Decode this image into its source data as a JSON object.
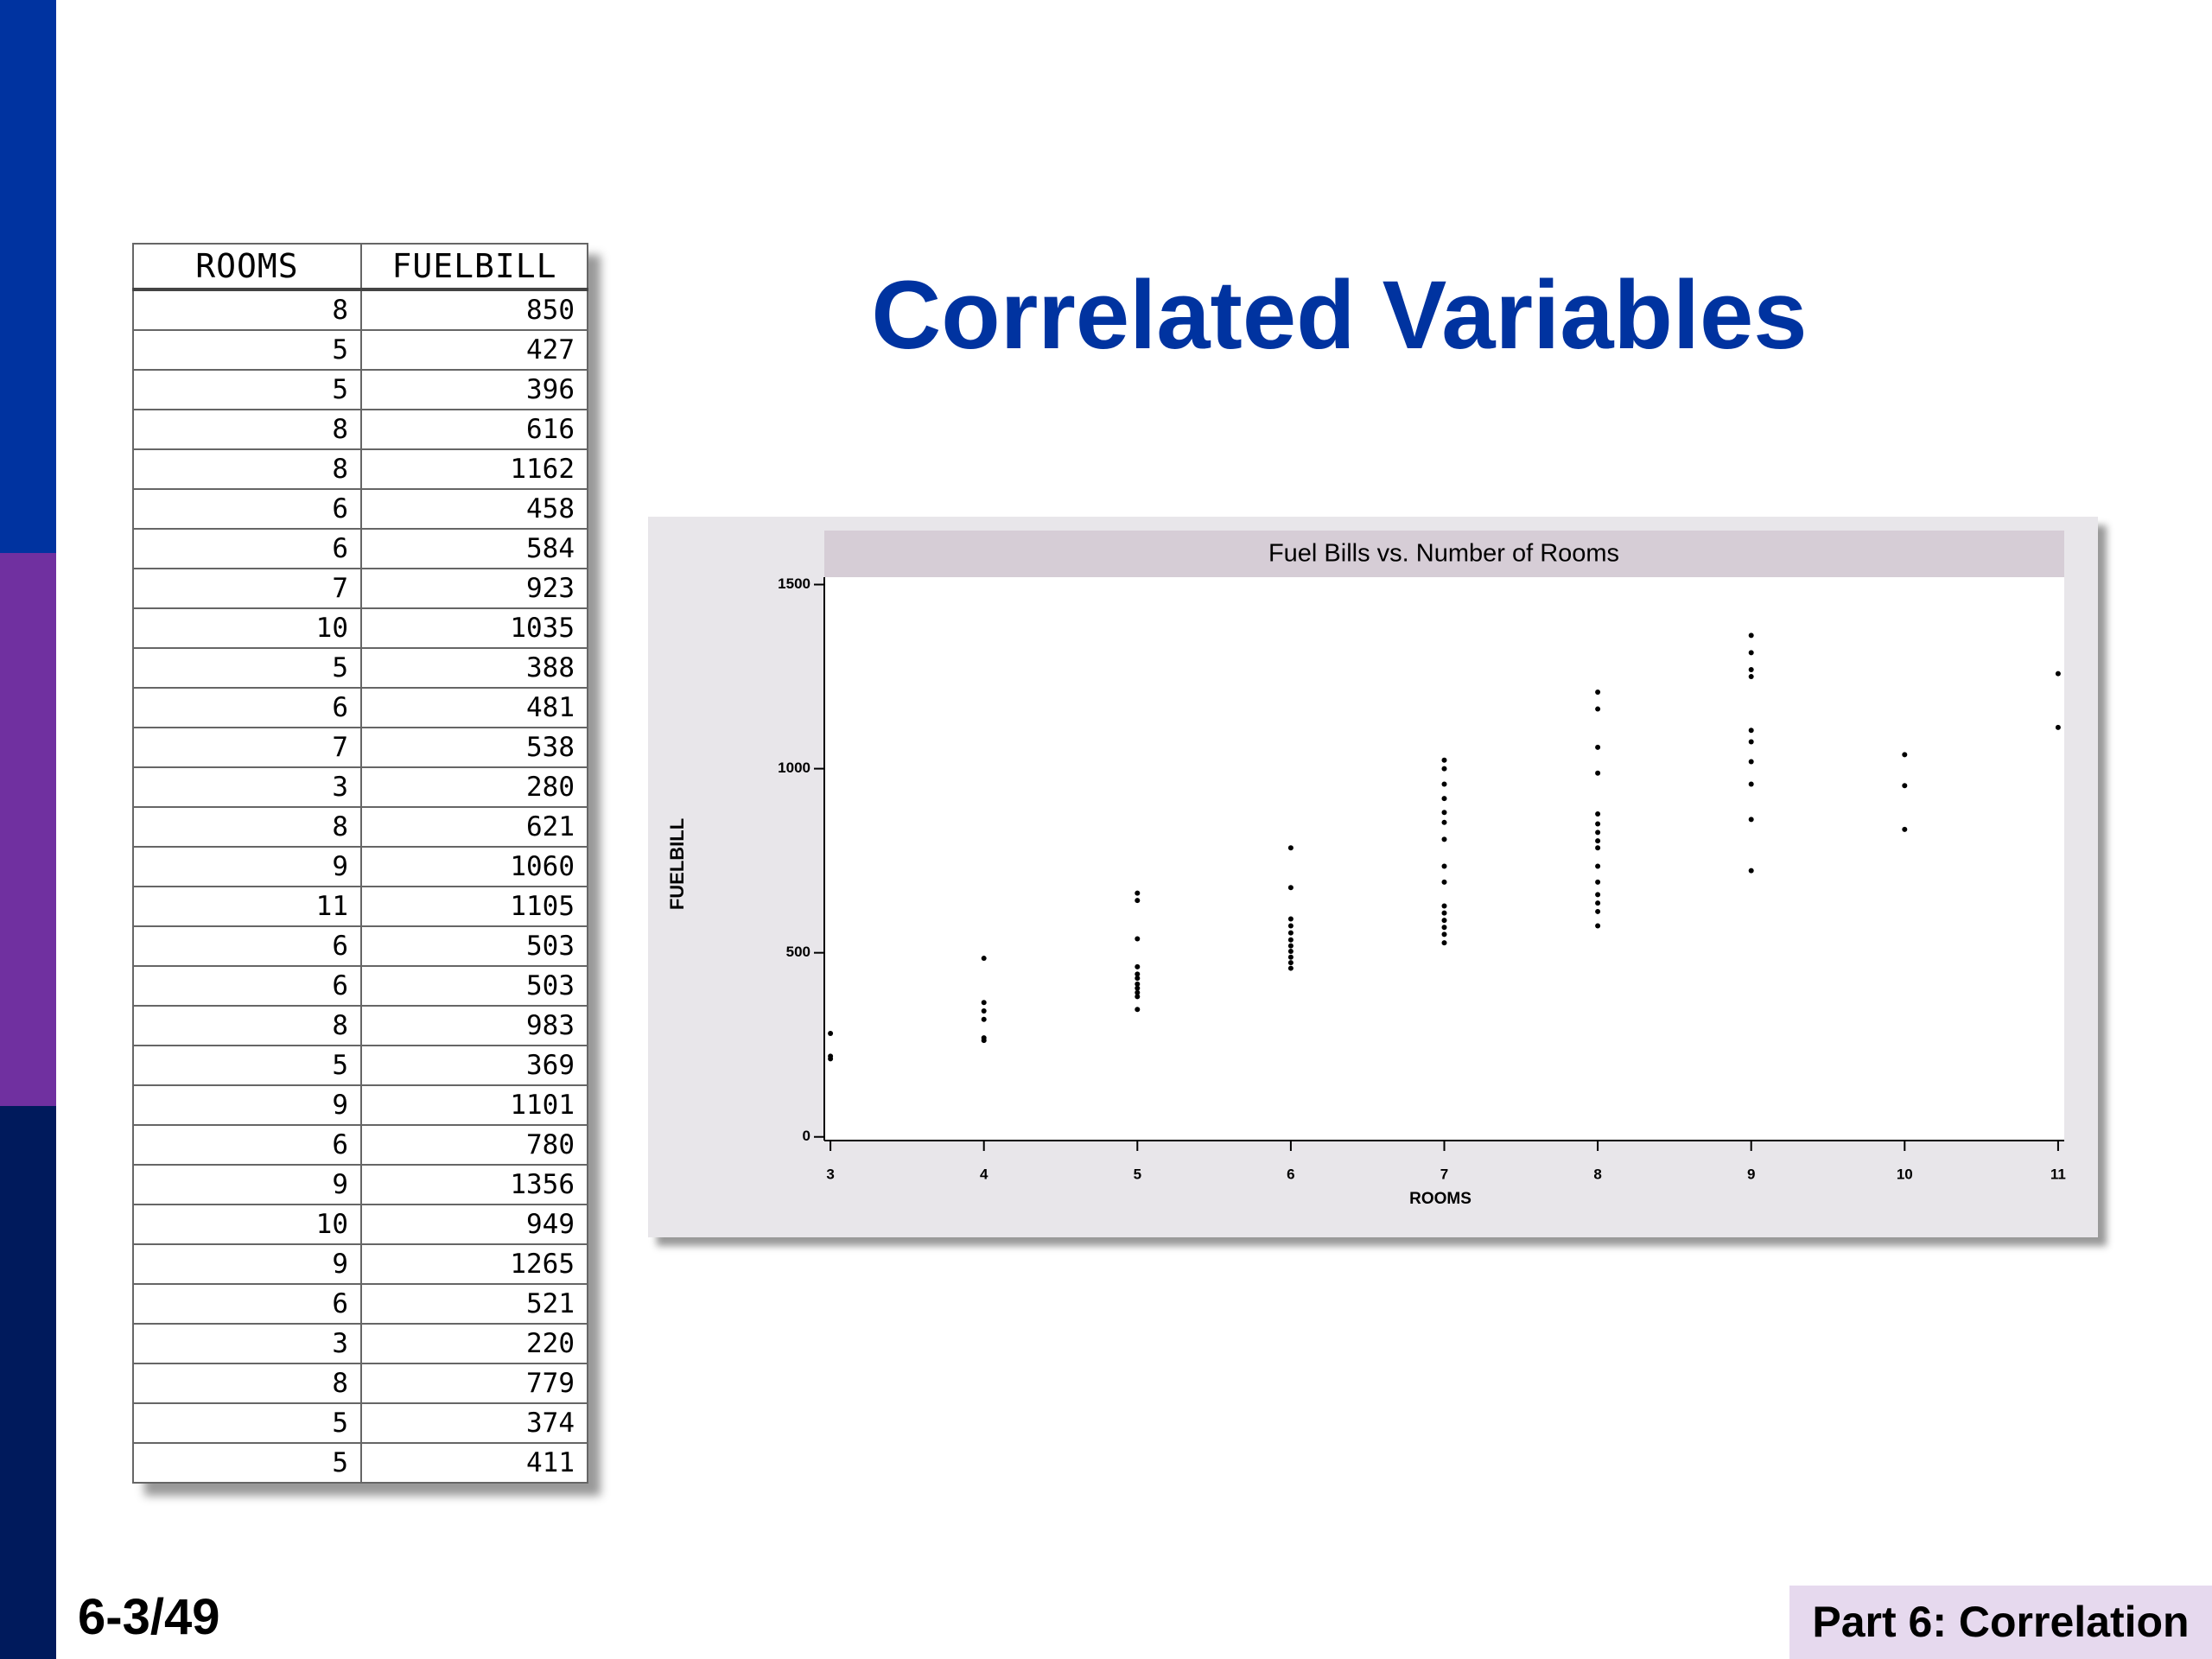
{
  "title": "Correlated Variables",
  "table": {
    "header": [
      "ROOMS",
      "FUELBILL"
    ],
    "rows": [
      [
        8,
        850
      ],
      [
        5,
        427
      ],
      [
        5,
        396
      ],
      [
        8,
        616
      ],
      [
        8,
        1162
      ],
      [
        6,
        458
      ],
      [
        6,
        584
      ],
      [
        7,
        923
      ],
      [
        10,
        1035
      ],
      [
        5,
        388
      ],
      [
        6,
        481
      ],
      [
        7,
        538
      ],
      [
        3,
        280
      ],
      [
        8,
        621
      ],
      [
        9,
        1060
      ],
      [
        11,
        1105
      ],
      [
        6,
        503
      ],
      [
        6,
        503
      ],
      [
        8,
        983
      ],
      [
        5,
        369
      ],
      [
        9,
        1101
      ],
      [
        6,
        780
      ],
      [
        9,
        1356
      ],
      [
        10,
        949
      ],
      [
        9,
        1265
      ],
      [
        6,
        521
      ],
      [
        3,
        220
      ],
      [
        8,
        779
      ],
      [
        5,
        374
      ],
      [
        5,
        411
      ]
    ]
  },
  "chart_data": {
    "type": "scatter",
    "title": "Fuel Bills vs. Number of Rooms",
    "x_label": "ROOMS",
    "y_label": "FUELBILL",
    "color": "#000000",
    "x": [
      3,
      3,
      3,
      4,
      4,
      4,
      4,
      4,
      4,
      5,
      5,
      5,
      5,
      5,
      5,
      5,
      5,
      5,
      5,
      5,
      6,
      6,
      6,
      6,
      6,
      6,
      6,
      6,
      6,
      6,
      6,
      7,
      7,
      7,
      7,
      7,
      7,
      7,
      7,
      7,
      7,
      7,
      7,
      7,
      7,
      7,
      8,
      8,
      8,
      8,
      8,
      8,
      8,
      8,
      8,
      8,
      8,
      8,
      8,
      8,
      8,
      9,
      9,
      9,
      9,
      9,
      9,
      9,
      9,
      9,
      9,
      10,
      10,
      10,
      11,
      11
    ],
    "values": [
      281,
      219,
      212,
      485,
      365,
      342,
      319,
      269,
      262,
      662,
      642,
      538,
      462,
      442,
      431,
      415,
      404,
      392,
      381,
      346,
      785,
      677,
      592,
      573,
      554,
      535,
      519,
      504,
      488,
      473,
      458,
      1023,
      1000,
      958,
      919,
      881,
      854,
      808,
      735,
      692,
      627,
      608,
      588,
      569,
      550,
      527,
      1208,
      1162,
      1058,
      988,
      877,
      850,
      827,
      804,
      785,
      735,
      692,
      658,
      635,
      612,
      573,
      1362,
      1315,
      1269,
      1250,
      1104,
      1073,
      1019,
      958,
      862,
      723,
      1038,
      954,
      835,
      1258,
      1112
    ],
    "xlim": [
      2.96,
      11.04
    ],
    "ylim": [
      -10,
      1520
    ],
    "xticks": [
      3,
      4,
      5,
      6,
      7,
      8,
      9,
      10,
      11
    ],
    "yticks": [
      0,
      500,
      1000,
      1500
    ]
  },
  "footer": {
    "page": "6-3/49",
    "section": "Part 6: Correlation"
  }
}
